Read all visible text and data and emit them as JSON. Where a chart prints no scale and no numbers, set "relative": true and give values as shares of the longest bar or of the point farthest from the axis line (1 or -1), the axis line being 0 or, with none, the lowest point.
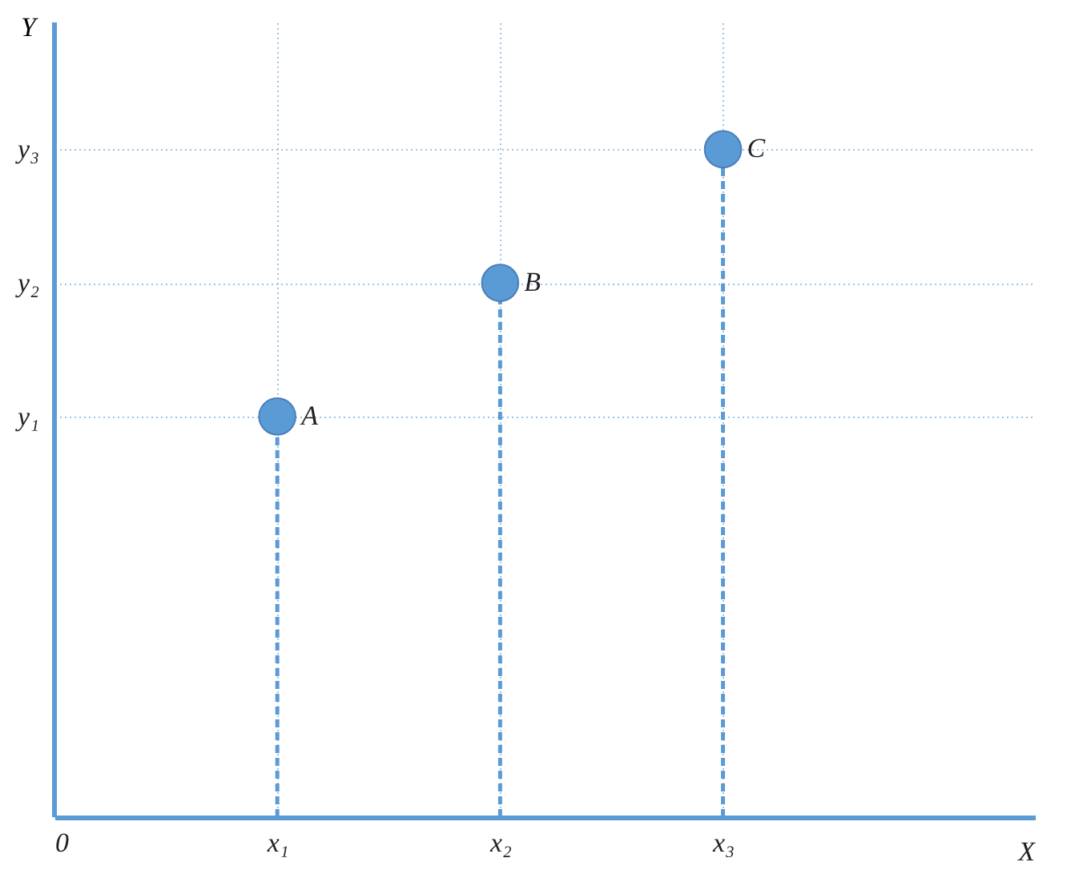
{
  "chart_data": {
    "type": "lollipop",
    "ylabel": "Y",
    "relative": true,
    "categories": [
      "0",
      "x₁",
      "x₂",
      "x₃"
    ],
    "values": [
      null,
      0.6,
      0.8,
      1
    ],
    "color": "#5b9bd5",
    "grid": true,
    "marker": "circle",
    "line_style": "dashed",
    "ref_lines": [
      {
        "axis": "x",
        "value": "0",
        "color": "#5b9bd5",
        "line_style": "solid"
      }
    ],
    "annotations": [
      "y₁",
      "y₂",
      "y₃",
      "X",
      {
        "text": "A",
        "x": "x₁",
        "y": 0.6
      },
      {
        "text": "B",
        "x": "x₂",
        "y": 0.8
      },
      {
        "text": "C",
        "x": "x₃",
        "y": 1
      }
    ]
  }
}
